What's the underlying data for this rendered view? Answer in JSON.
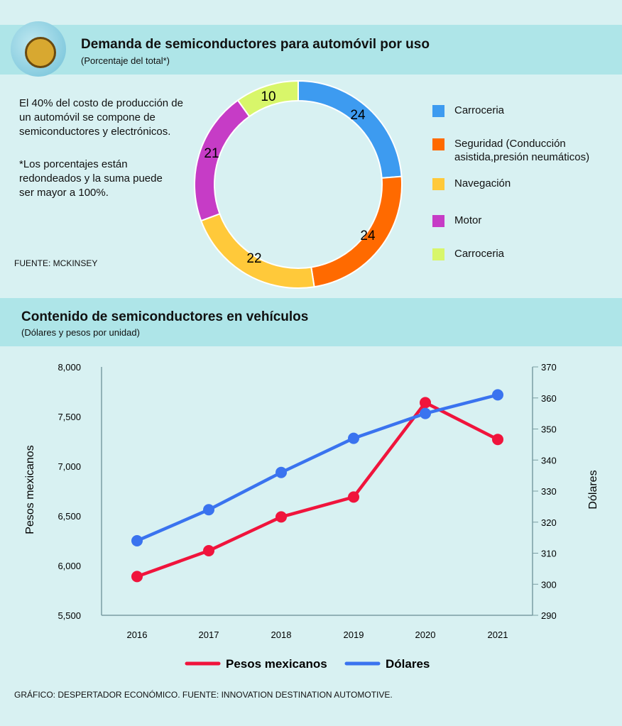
{
  "section1": {
    "title": "Demanda de semiconductores para automóvil por uso",
    "subtitle": "(Porcentaje del total*)",
    "note1": "El 40% del costo de producción de un automóvil se compone de semiconductores y electrónicos.",
    "note2": "*Los porcentajes están redondeados y la suma puede ser mayor a 100%.",
    "source": "FUENTE: MCKINSEY"
  },
  "section2": {
    "title": "Contenido de semiconductores en vehículos",
    "subtitle": "(Dólares y pesos por unidad)"
  },
  "footer": "GRÁFICO: DESPERTADOR ECONÓMICO.  FUENTE: INNOVATION DESTINATION AUTOMOTIVE.",
  "chart_data": [
    {
      "type": "pie",
      "donut": true,
      "title": "Demanda de semiconductores para automóvil por uso",
      "slices": [
        {
          "label": "Carroceria",
          "value": 24,
          "color": "#3d9bf0"
        },
        {
          "label": "Seguridad (Conducción asistida,presión neumáticos)",
          "value": 24,
          "color": "#ff6a00"
        },
        {
          "label": "Navegación",
          "value": 22,
          "color": "#ffc93a"
        },
        {
          "label": "Motor",
          "value": 21,
          "color": "#c63cc6"
        },
        {
          "label": "Carroceria",
          "value": 10,
          "color": "#d8f66a"
        }
      ]
    },
    {
      "type": "line",
      "title": "Contenido de semiconductores en vehículos",
      "categories": [
        "2016",
        "2017",
        "2018",
        "2019",
        "2020",
        "2021"
      ],
      "ylabel": "Pesos mexicanos",
      "y2label": "Dólares",
      "ylim": [
        5500,
        8000
      ],
      "yticks": [
        "8,000",
        "7,500",
        "7,000",
        "6,500",
        "6,000",
        "5,500"
      ],
      "y2lim": [
        290,
        370
      ],
      "y2ticks": [
        "370",
        "360",
        "350",
        "340",
        "330",
        "320",
        "310",
        "300",
        "290"
      ],
      "series": [
        {
          "name": "Pesos mexicanos",
          "axis": "left",
          "color": "#f0143c",
          "values": [
            5890,
            6150,
            6490,
            6690,
            7640,
            7270
          ]
        },
        {
          "name": "Dólares",
          "axis": "right",
          "color": "#3a73ef",
          "values": [
            314,
            324,
            336,
            347,
            355,
            361
          ]
        }
      ],
      "legend": "bottom"
    }
  ]
}
